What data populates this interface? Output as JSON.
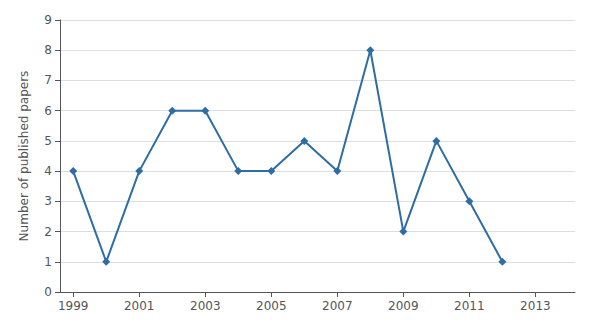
{
  "chart_data": {
    "type": "line",
    "x": [
      1999,
      2000,
      2001,
      2002,
      2003,
      2004,
      2005,
      2006,
      2007,
      2008,
      2009,
      2010,
      2011,
      2012
    ],
    "values": [
      4,
      1,
      4,
      6,
      6,
      4,
      4,
      5,
      4,
      8,
      2,
      5,
      3,
      1
    ],
    "color": "#2E6DA4",
    "marker": "diamond",
    "ylabel": "Number of published papers",
    "xlim": [
      1998.6,
      2014.2
    ],
    "xticks": [
      1999,
      2001,
      2003,
      2005,
      2007,
      2009,
      2011,
      2013
    ],
    "ylim": [
      0,
      9
    ],
    "yticks": [
      0,
      1,
      2,
      3,
      4,
      5,
      6,
      7,
      8,
      9
    ],
    "grid": "y"
  }
}
